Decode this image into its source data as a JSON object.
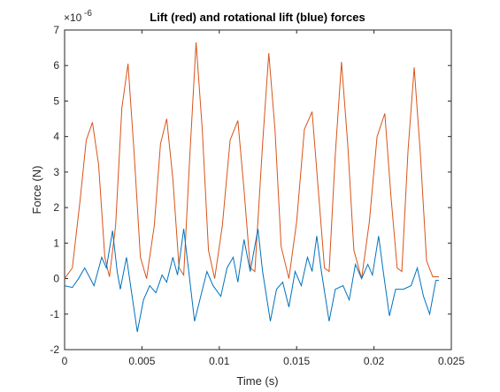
{
  "chart_data": {
    "type": "line",
    "title": "Lift (red) and rotational lift (blue) forces",
    "x_label": "Time (s)",
    "y_label": "Force (N)",
    "y_exponent_base": "×10",
    "y_exponent": "-6",
    "xlim": [
      0,
      0.025
    ],
    "xticks": [
      0,
      0.005,
      0.01,
      0.015,
      0.02,
      0.025
    ],
    "ylim": [
      -2,
      7
    ],
    "yticks": [
      -2,
      -1,
      0,
      1,
      2,
      3,
      4,
      5,
      6,
      7
    ],
    "grid": false,
    "series": [
      {
        "color": "#d95319",
        "x": [
          0,
          0.0005,
          0.001,
          0.0014,
          0.0018,
          0.0022,
          0.0026,
          0.0029,
          0.0033,
          0.0037,
          0.0041,
          0.0045,
          0.0049,
          0.0053,
          0.0058,
          0.0062,
          0.0066,
          0.007,
          0.0074,
          0.0077,
          0.0081,
          0.0085,
          0.0089,
          0.0093,
          0.0097,
          0.0102,
          0.0107,
          0.0112,
          0.0116,
          0.012,
          0.0123,
          0.0128,
          0.0132,
          0.0136,
          0.014,
          0.0145,
          0.015,
          0.0155,
          0.016,
          0.0164,
          0.0168,
          0.0171,
          0.0175,
          0.0179,
          0.0183,
          0.0187,
          0.0192,
          0.0197,
          0.0202,
          0.0207,
          0.0211,
          0.0215,
          0.0218,
          0.0222,
          0.0226,
          0.023,
          0.0234,
          0.0238,
          0.0242
        ],
        "values": [
          0,
          0.3,
          2.2,
          3.9,
          4.4,
          3.2,
          0.6,
          0.05,
          1.5,
          4.8,
          6.05,
          3.5,
          0.6,
          0,
          1.5,
          3.8,
          4.5,
          2.8,
          0.3,
          0.1,
          3.5,
          6.65,
          4.2,
          0.8,
          0,
          1.5,
          3.9,
          4.45,
          2.5,
          0.3,
          0.2,
          3.8,
          6.35,
          4.2,
          0.9,
          0,
          1.6,
          4.2,
          4.7,
          2.5,
          0.3,
          0.2,
          3.5,
          6.1,
          3.8,
          0.8,
          0,
          1.6,
          4,
          4.65,
          2.3,
          0.3,
          0.2,
          3.6,
          5.95,
          3.5,
          0.5,
          0.05,
          0.05
        ]
      },
      {
        "color": "#0072bd",
        "x": [
          0,
          0.0005,
          0.0009,
          0.0013,
          0.0016,
          0.0019,
          0.0024,
          0.0027,
          0.0031,
          0.0034,
          0.0036,
          0.004,
          0.0043,
          0.0047,
          0.0051,
          0.0055,
          0.0059,
          0.0063,
          0.0066,
          0.007,
          0.0073,
          0.0077,
          0.008,
          0.0084,
          0.0088,
          0.0092,
          0.0096,
          0.0101,
          0.0105,
          0.0109,
          0.0112,
          0.0116,
          0.012,
          0.0125,
          0.0128,
          0.0133,
          0.0137,
          0.0141,
          0.0145,
          0.0149,
          0.0153,
          0.0157,
          0.016,
          0.0163,
          0.0166,
          0.0171,
          0.0175,
          0.018,
          0.0184,
          0.0188,
          0.0192,
          0.0196,
          0.0199,
          0.0203,
          0.0206,
          0.021,
          0.0214,
          0.0219,
          0.0224,
          0.0228,
          0.0232,
          0.0236,
          0.024,
          0.0242
        ],
        "values": [
          -0.2,
          -0.25,
          0,
          0.3,
          0.05,
          -0.2,
          0.6,
          0.3,
          1.35,
          0.2,
          -0.3,
          0.6,
          -0.3,
          -1.5,
          -0.6,
          -0.2,
          -0.4,
          0.1,
          -0.1,
          0.6,
          0.1,
          1.4,
          0.3,
          -1.2,
          -0.5,
          0.2,
          -0.2,
          -0.5,
          0.3,
          0.6,
          -0.1,
          1.1,
          0.2,
          1.4,
          0.2,
          -1.2,
          -0.3,
          -0.1,
          -0.8,
          0.2,
          -0.2,
          0.6,
          0.2,
          1.2,
          0.2,
          -1.2,
          -0.3,
          -0.2,
          -0.6,
          0.4,
          0,
          0.4,
          0.1,
          1.2,
          0.2,
          -1.05,
          -0.3,
          -0.3,
          -0.2,
          0.3,
          -0.5,
          -1,
          -0.05,
          -0.05
        ]
      }
    ]
  }
}
